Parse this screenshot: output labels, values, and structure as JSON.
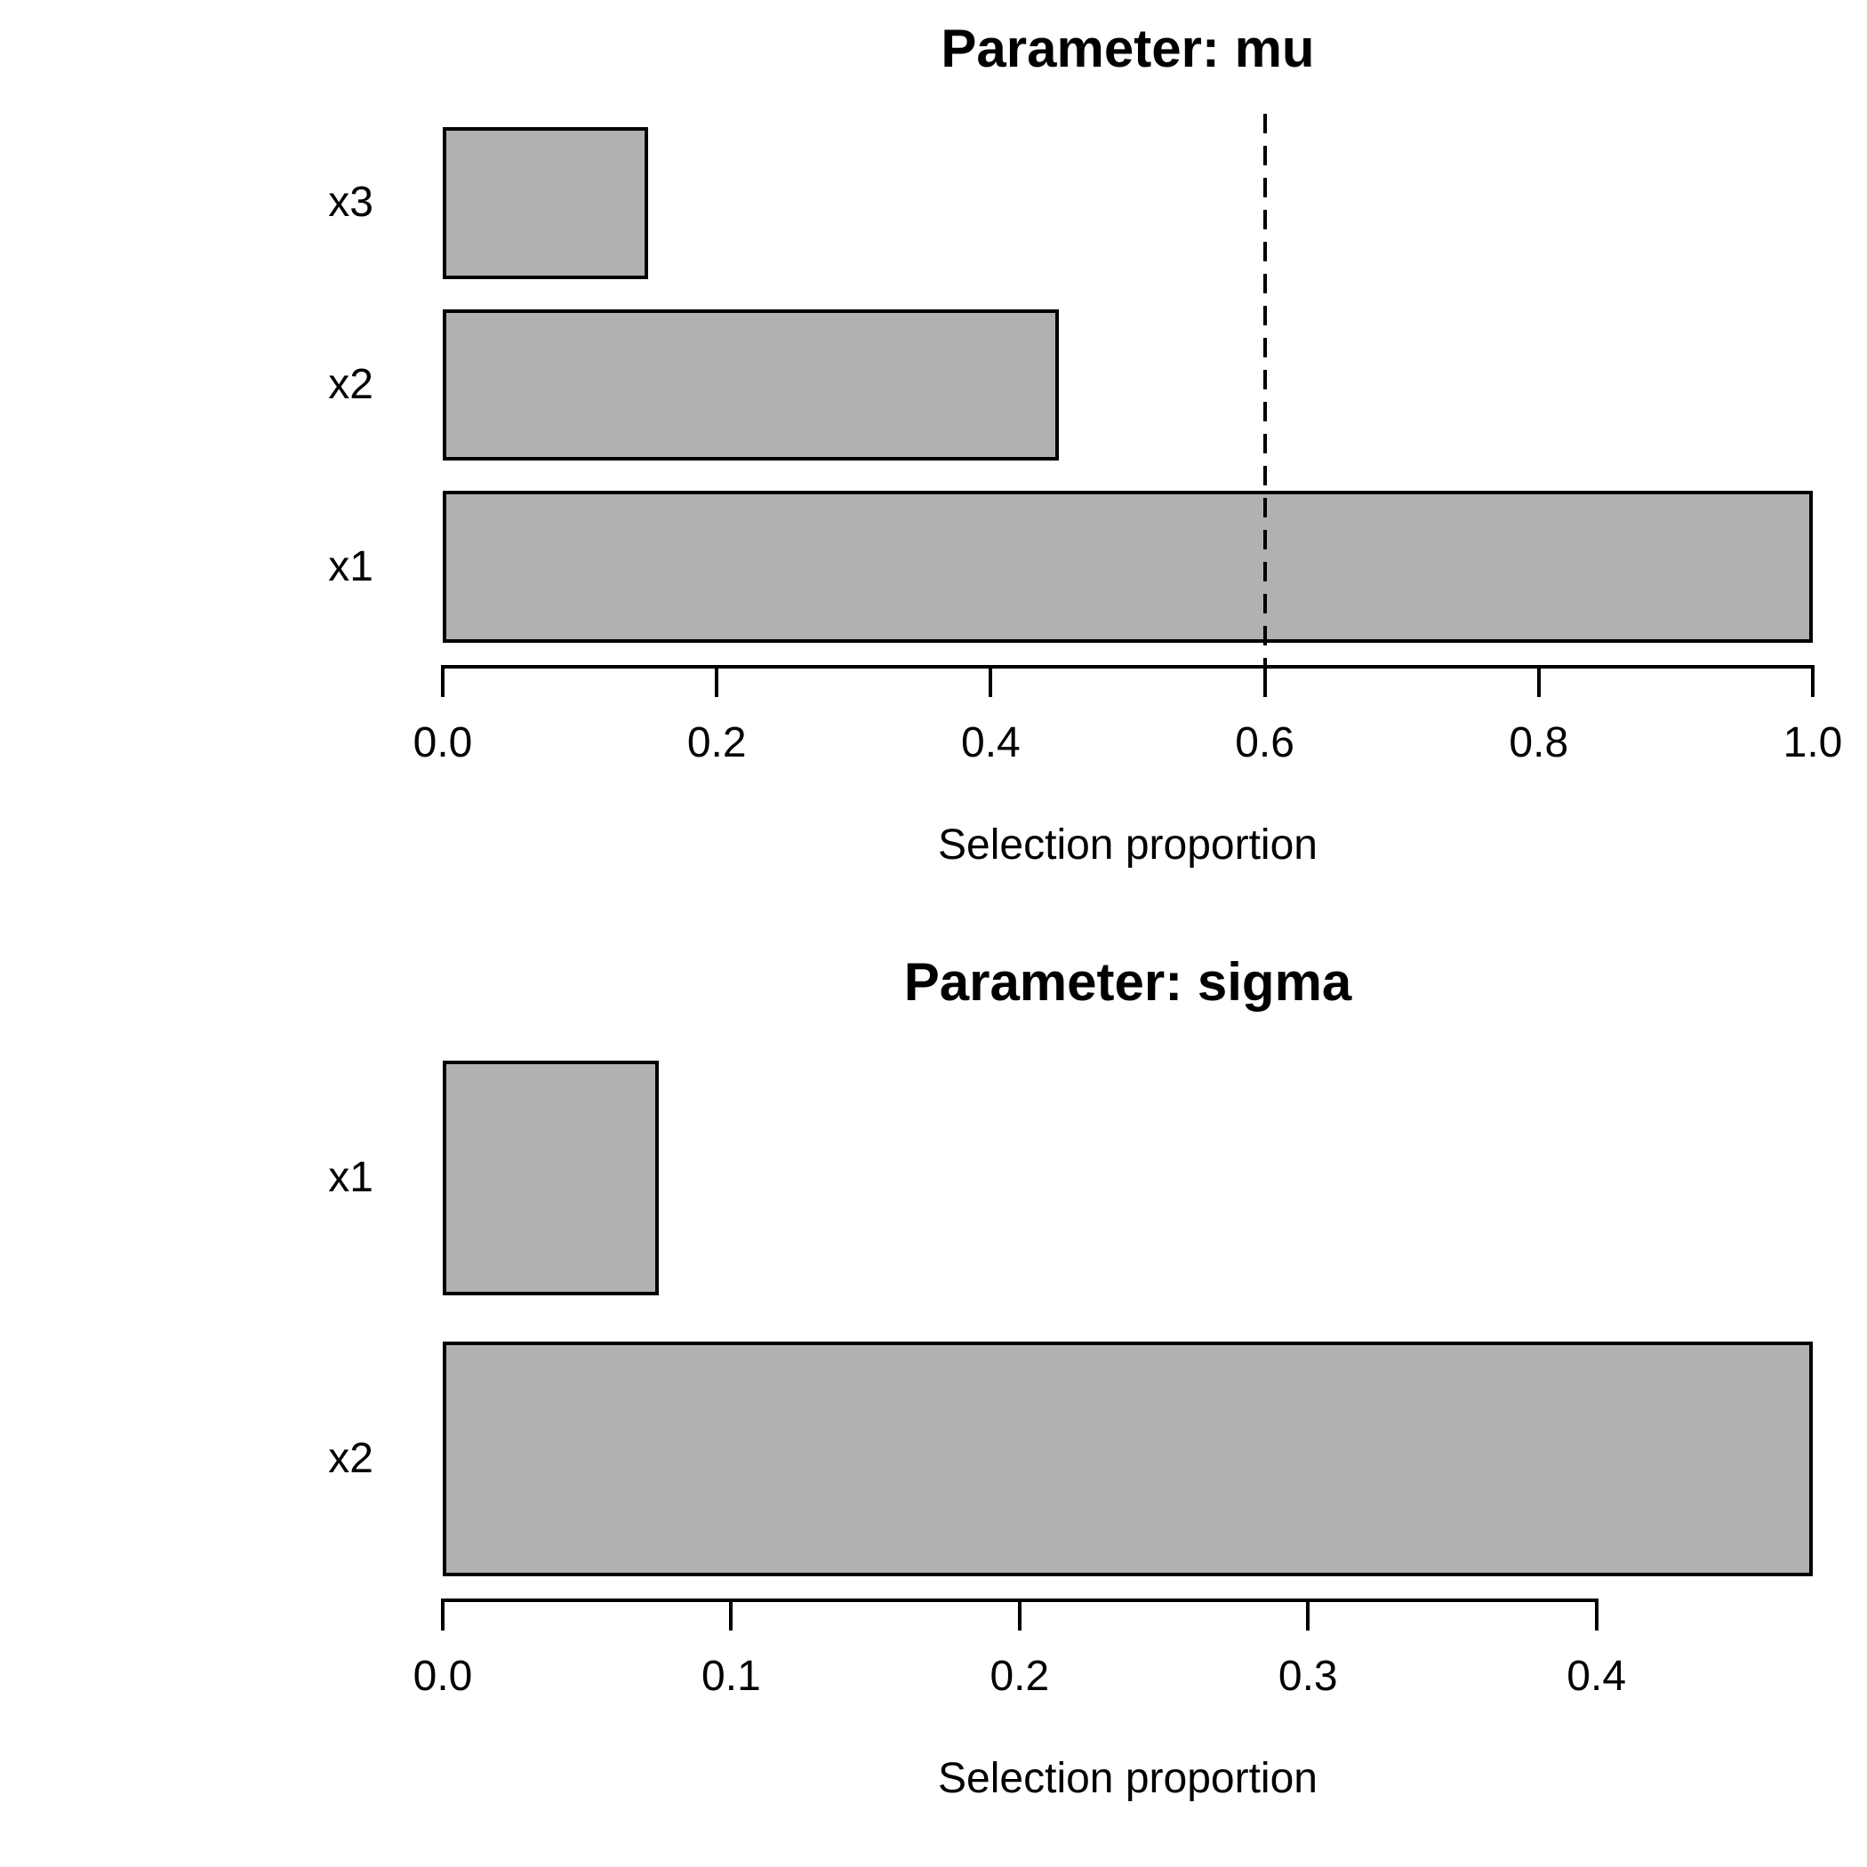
{
  "figure": {
    "background": "#ffffff",
    "bar_fill": "#b1b1b1",
    "bar_border": "#000000",
    "axis_color": "#000000",
    "text_color": "#000000"
  },
  "chart_data": [
    {
      "type": "bar",
      "orientation": "horizontal",
      "title": "Parameter: mu",
      "xlabel": "Selection proportion",
      "categories_top_to_bottom": [
        "x3",
        "x2",
        "x1"
      ],
      "values_top_to_bottom": [
        0.15,
        0.45,
        1.0
      ],
      "xlim": [
        0,
        1.0
      ],
      "xticks": [
        0,
        0.2,
        0.4,
        0.6,
        0.8,
        1.0
      ],
      "xtick_labels": [
        "0.0",
        "0.2",
        "0.4",
        "0.6",
        "0.8",
        "1.0"
      ],
      "reference_line": {
        "x": 0.6,
        "style": "dashed",
        "color": "#000000"
      },
      "legend": null,
      "grid": false
    },
    {
      "type": "bar",
      "orientation": "horizontal",
      "title": "Parameter: sigma",
      "xlabel": "Selection proportion",
      "categories_top_to_bottom": [
        "x1",
        "x2"
      ],
      "values_top_to_bottom": [
        0.075,
        0.475
      ],
      "xlim": [
        0,
        0.475
      ],
      "xticks": [
        0,
        0.1,
        0.2,
        0.3,
        0.4
      ],
      "xtick_labels": [
        "0.0",
        "0.1",
        "0.2",
        "0.3",
        "0.4"
      ],
      "reference_line": null,
      "legend": null,
      "grid": false
    }
  ]
}
